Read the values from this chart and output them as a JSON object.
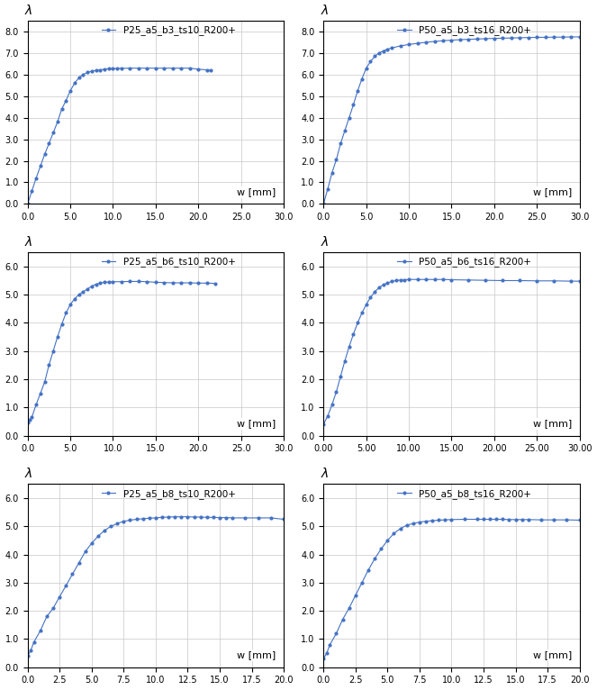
{
  "subplots": [
    {
      "title": "P25_a5_b3_ts10_R200+",
      "xlim": [
        0,
        30
      ],
      "ylim": [
        0,
        8.5
      ],
      "xmin": 0,
      "xmax": 30,
      "ymin": 0,
      "ymax": 8.5,
      "xticks": [
        0.0,
        5.0,
        10.0,
        15.0,
        20.0,
        25.0,
        30.0
      ],
      "yticks": [
        0.0,
        1.0,
        2.0,
        3.0,
        4.0,
        5.0,
        6.0,
        7.0,
        8.0
      ],
      "xticklabels": [
        "0.0",
        "5.0",
        "10.0",
        "15.0",
        "20.0",
        "25.0",
        "30.0"
      ],
      "yticklabels": [
        "0.0",
        "1.0",
        "2.0",
        "3.0",
        "4.0",
        "5.0",
        "6.0",
        "7.0",
        "8.0"
      ],
      "curve_type": "b3_p25"
    },
    {
      "title": "P50_a5_b3_ts16_R200+",
      "xlim": [
        0,
        30
      ],
      "ylim": [
        0,
        8.5
      ],
      "xmin": 0,
      "xmax": 30,
      "ymin": 0,
      "ymax": 8.5,
      "xticks": [
        0.0,
        5.0,
        10.0,
        15.0,
        20.0,
        25.0,
        30.0
      ],
      "yticks": [
        0.0,
        1.0,
        2.0,
        3.0,
        4.0,
        5.0,
        6.0,
        7.0,
        8.0
      ],
      "xticklabels": [
        "0.0",
        "5.0",
        "10.0",
        "15.0",
        "20.0",
        "25.0",
        "30.0"
      ],
      "yticklabels": [
        "0.0",
        "1.0",
        "2.0",
        "3.0",
        "4.0",
        "5.0",
        "6.0",
        "7.0",
        "8.0"
      ],
      "curve_type": "b3_p50"
    },
    {
      "title": "P25_a5_b6_ts10_R200+",
      "xlim": [
        0,
        30
      ],
      "ylim": [
        0,
        6.5
      ],
      "xmin": 0,
      "xmax": 30,
      "ymin": 0,
      "ymax": 6.5,
      "xticks": [
        0.0,
        5.0,
        10.0,
        15.0,
        20.0,
        25.0,
        30.0
      ],
      "yticks": [
        0.0,
        1.0,
        2.0,
        3.0,
        4.0,
        5.0,
        6.0
      ],
      "xticklabels": [
        "0.0",
        "5.0",
        "10.0",
        "15.0",
        "20.0",
        "25.0",
        "30.0"
      ],
      "yticklabels": [
        "0.0",
        "1.0",
        "2.0",
        "3.0",
        "4.0",
        "5.0",
        "6.0"
      ],
      "curve_type": "b6_p25"
    },
    {
      "title": "P50_a5_b6_ts16_R200+",
      "xlim": [
        0,
        30
      ],
      "ylim": [
        0,
        6.5
      ],
      "xmin": 0,
      "xmax": 30,
      "ymin": 0,
      "ymax": 6.5,
      "xticks": [
        0.0,
        5.0,
        10.0,
        15.0,
        20.0,
        25.0,
        30.0
      ],
      "yticks": [
        0.0,
        1.0,
        2.0,
        3.0,
        4.0,
        5.0,
        6.0
      ],
      "xticklabels": [
        "0.00",
        "5.00",
        "10.00",
        "15.00",
        "20.00",
        "25.00",
        "30.00"
      ],
      "yticklabels": [
        "0.0",
        "1.0",
        "2.0",
        "3.0",
        "4.0",
        "5.0",
        "6.0"
      ],
      "curve_type": "b6_p50"
    },
    {
      "title": "P25_a5_b8_ts10_R200+",
      "xlim": [
        0,
        20
      ],
      "ylim": [
        0,
        6.5
      ],
      "xmin": 0,
      "xmax": 20,
      "ymin": 0,
      "ymax": 6.5,
      "xticks": [
        0.0,
        2.5,
        5.0,
        7.5,
        10.0,
        12.5,
        15.0,
        17.5,
        20.0
      ],
      "yticks": [
        0.0,
        1.0,
        2.0,
        3.0,
        4.0,
        5.0,
        6.0
      ],
      "xticklabels": [
        "0.0",
        "2.5",
        "5.0",
        "7.5",
        "10.0",
        "12.5",
        "15.0",
        "17.5",
        "20.0"
      ],
      "yticklabels": [
        "0.0",
        "1.0",
        "2.0",
        "3.0",
        "4.0",
        "5.0",
        "6.0"
      ],
      "curve_type": "b8_p25"
    },
    {
      "title": "P50_a5_b8_ts16_R200+",
      "xlim": [
        0,
        20
      ],
      "ylim": [
        0,
        6.5
      ],
      "xmin": 0,
      "xmax": 20,
      "ymin": 0,
      "ymax": 6.5,
      "xticks": [
        0.0,
        2.5,
        5.0,
        7.5,
        10.0,
        12.5,
        15.0,
        17.5,
        20.0
      ],
      "yticks": [
        0.0,
        1.0,
        2.0,
        3.0,
        4.0,
        5.0,
        6.0
      ],
      "xticklabels": [
        "0.0",
        "2.5",
        "5.0",
        "7.5",
        "10.0",
        "12.5",
        "15.0",
        "17.5",
        "20.0"
      ],
      "yticklabels": [
        "0.0",
        "1.0",
        "2.0",
        "3.0",
        "4.0",
        "5.0",
        "6.0"
      ],
      "curve_type": "b8_p50"
    }
  ],
  "line_color": "#4472c4",
  "marker": ".",
  "markersize": 4,
  "linewidth": 0.8,
  "ylabel": "λ",
  "xlabel": "w [mm]",
  "grid_color": "#c8c8c8",
  "background_color": "#ffffff",
  "legend_fontsize": 7.5,
  "label_fontsize": 8,
  "tick_fontsize": 7
}
